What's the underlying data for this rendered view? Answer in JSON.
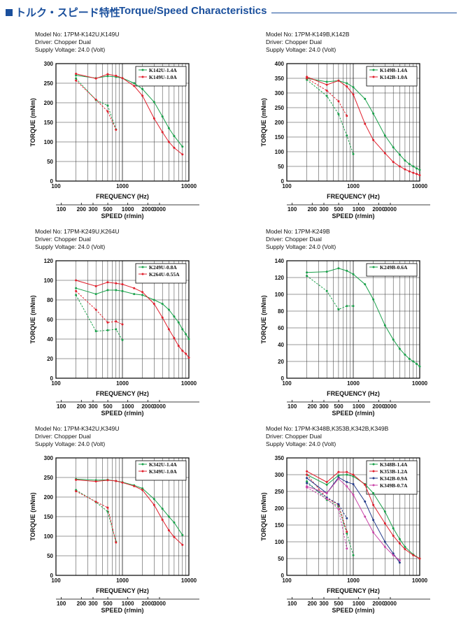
{
  "header": {
    "japanese_title": "トルク・スピード特性",
    "english_title": "Torque/Speed Characteristics",
    "accent_color": "#1a4f9c"
  },
  "axis_labels": {
    "torque": "TORQUE (mNm)",
    "frequency": "FREQUENCY (Hz)",
    "speed": "SPEED (r/min)"
  },
  "colors": {
    "green": "#19a04a",
    "red": "#e01f2c",
    "blue": "#243b8a",
    "magenta": "#c845a8"
  },
  "chart_data": [
    {
      "type": "line",
      "model": "Model No: 17PM-K142U,K149U",
      "driver": "Driver: Chopper Dual",
      "voltage": "Supply Voltage: 24.0 (Volt)",
      "xlabel": "FREQUENCY (Hz)",
      "x2label": "SPEED (r/min)",
      "ylabel": "TORQUE (mNm)",
      "xscale": "log",
      "xlim": [
        100,
        10000
      ],
      "ylim": [
        0,
        300
      ],
      "yticks": [
        "0",
        "50",
        "100",
        "150",
        "200",
        "250",
        "300"
      ],
      "xticks": [
        "100",
        "1000",
        "10000"
      ],
      "speed_ticks": [
        "100",
        "200",
        "300",
        "500",
        "1000",
        "2000",
        "3000"
      ],
      "legend_position": "top-right",
      "series": [
        {
          "name": "K142U-1.4A",
          "color": "green",
          "solid": {
            "x": [
              200,
              400,
              600,
              800,
              1000,
              1500,
              2000,
              3000,
              4000,
              5000,
              6000,
              8000
            ],
            "y": [
              270,
              263,
              268,
              266,
              263,
              250,
              235,
              202,
              165,
              135,
              115,
              88
            ]
          },
          "dashed": {
            "x": [
              200,
              400,
              600,
              800
            ],
            "y": [
              262,
              207,
              193,
              132
            ]
          }
        },
        {
          "name": "K149U-1.0A",
          "color": "red",
          "solid": {
            "x": [
              200,
              400,
              600,
              800,
              1000,
              1500,
              2000,
              3000,
              4000,
              5000,
              6000,
              8000
            ],
            "y": [
              274,
              262,
              273,
              269,
              263,
              243,
              218,
              160,
              125,
              100,
              85,
              68
            ]
          },
          "dashed": {
            "x": [
              200,
              400,
              600,
              800
            ],
            "y": [
              257,
              208,
              178,
              131
            ]
          }
        }
      ]
    },
    {
      "type": "line",
      "model": "Model No: 17PM-K149B,K142B",
      "driver": "Driver: Chopper Dual",
      "voltage": "Supply Voltage: 24.0 (Volt)",
      "xlabel": "FREQUENCY (Hz)",
      "x2label": "SPEED (r/min)",
      "ylabel": "TORQUE (mNm)",
      "xscale": "log",
      "xlim": [
        100,
        10000
      ],
      "ylim": [
        0,
        400
      ],
      "yticks": [
        "0",
        "50",
        "100",
        "150",
        "200",
        "250",
        "300",
        "350",
        "400"
      ],
      "xticks": [
        "100",
        "1000",
        "10000"
      ],
      "speed_ticks": [
        "100",
        "200",
        "300",
        "500",
        "1000",
        "2000",
        "3000"
      ],
      "legend_position": "top-right",
      "series": [
        {
          "name": "K149B-1.4A",
          "color": "green",
          "solid": {
            "x": [
              200,
              400,
              600,
              800,
              1000,
              1500,
              2000,
              3000,
              4000,
              5000,
              6000,
              7000,
              8000,
              9000,
              10000
            ],
            "y": [
              350,
              338,
              342,
              333,
              320,
              280,
              230,
              155,
              115,
              90,
              70,
              58,
              50,
              43,
              38
            ]
          },
          "dashed": {
            "x": [
              200,
              400,
              600,
              800,
              1000
            ],
            "y": [
              345,
              290,
              228,
              155,
              92
            ]
          }
        },
        {
          "name": "K142B-1.0A",
          "color": "red",
          "solid": {
            "x": [
              200,
              400,
              600,
              800,
              1000,
              1500,
              2000,
              3000,
              4000,
              5000,
              6000,
              7000,
              8000,
              9000,
              10000
            ],
            "y": [
              355,
              328,
              342,
              322,
              295,
              195,
              140,
              95,
              65,
              50,
              40,
              33,
              28,
              24,
              20
            ]
          },
          "dashed": {
            "x": [
              200,
              400,
              600,
              800
            ],
            "y": [
              350,
              308,
              272,
              222
            ]
          }
        }
      ]
    },
    {
      "type": "line",
      "model": "Model No: 17PM-K249U,K264U",
      "driver": "Driver: Chopper Dual",
      "voltage": "Supply Voltage: 24.0 (Volt)",
      "xlabel": "FREQUENCY (Hz)",
      "x2label": "SPEED (r/min)",
      "ylabel": "TORQUE (mNm)",
      "xscale": "log",
      "xlim": [
        100,
        10000
      ],
      "ylim": [
        0,
        120
      ],
      "yticks": [
        "0",
        "20",
        "40",
        "60",
        "80",
        "100",
        "120"
      ],
      "xticks": [
        "100",
        "1000",
        "10000"
      ],
      "speed_ticks": [
        "100",
        "200",
        "300",
        "500",
        "1000",
        "2000",
        "3000"
      ],
      "legend_position": "top-right",
      "series": [
        {
          "name": "K249U-0.8A",
          "color": "green",
          "solid": {
            "x": [
              200,
              400,
              600,
              800,
              1000,
              1500,
              2000,
              3000,
              4000,
              5000,
              6000,
              7000,
              8000,
              9000,
              10000
            ],
            "y": [
              92,
              86,
              90,
              90,
              89,
              86,
              85,
              80,
              76,
              70,
              63,
              57,
              50,
              45,
              40
            ]
          },
          "dashed": {
            "x": [
              200,
              400,
              600,
              800,
              1000
            ],
            "y": [
              85,
              48,
              49,
              50,
              39
            ]
          }
        },
        {
          "name": "K264U-0.55A",
          "color": "red",
          "solid": {
            "x": [
              200,
              400,
              600,
              800,
              1000,
              1500,
              2000,
              3000,
              4000,
              5000,
              6000,
              7000,
              8000,
              9000,
              10000
            ],
            "y": [
              100,
              94,
              98,
              97,
              96,
              92,
              88,
              76,
              62,
              50,
              41,
              33,
              28,
              25,
              21
            ]
          },
          "dashed": {
            "x": [
              200,
              400,
              600,
              800,
              1000
            ],
            "y": [
              89,
              70,
              57,
              58,
              55
            ]
          }
        }
      ]
    },
    {
      "type": "line",
      "model": "Model No: 17PM-K249B",
      "driver": "Driver: Chopper Dual",
      "voltage": "Supply Voltage: 24.0 (Volt)",
      "xlabel": "FREQUENCY (Hz)",
      "x2label": "SPEED (r/min)",
      "ylabel": "TORQUE (mNm)",
      "xscale": "log",
      "xlim": [
        100,
        10000
      ],
      "ylim": [
        0,
        140
      ],
      "yticks": [
        "0",
        "20",
        "40",
        "60",
        "80",
        "100",
        "120",
        "140"
      ],
      "xticks": [
        "100",
        "1000",
        "10000"
      ],
      "speed_ticks": [
        "100",
        "200",
        "300",
        "500",
        "1000",
        "2000",
        "3000"
      ],
      "legend_position": "top-right",
      "series": [
        {
          "name": "K249B-0.6A",
          "color": "green",
          "solid": {
            "x": [
              200,
              400,
              600,
              800,
              1000,
              1500,
              2000,
              3000,
              4000,
              5000,
              6000,
              7000,
              8000,
              9000,
              10000
            ],
            "y": [
              126,
              127,
              131,
              128,
              124,
              112,
              94,
              63,
              46,
              35,
              28,
              23,
              20,
              17,
              14
            ]
          },
          "dashed": {
            "x": [
              200,
              400,
              600,
              800,
              1000
            ],
            "y": [
              122,
              104,
              82,
              86,
              86
            ]
          }
        }
      ]
    },
    {
      "type": "line",
      "model": "Model No: 17PM-K342U,K349U",
      "driver": "Driver: Chopper Dual",
      "voltage": "Supply Voltage: 24.0 (Volt)",
      "xlabel": "FREQUENCY (Hz)",
      "x2label": "SPEED (r/min)",
      "ylabel": "TORQUE (mNm)",
      "xscale": "log",
      "xlim": [
        100,
        10000
      ],
      "ylim": [
        0,
        300
      ],
      "yticks": [
        "0",
        "50",
        "100",
        "150",
        "200",
        "250",
        "300"
      ],
      "xticks": [
        "100",
        "1000",
        "10000"
      ],
      "speed_ticks": [
        "100",
        "200",
        "300",
        "500",
        "1000",
        "2000",
        "3000"
      ],
      "legend_position": "top-right",
      "series": [
        {
          "name": "K342U-1.4A",
          "color": "green",
          "solid": {
            "x": [
              200,
              400,
              600,
              800,
              1000,
              1500,
              2000,
              3000,
              4000,
              5000,
              6000,
              8000
            ],
            "y": [
              246,
              243,
              244,
              241,
              238,
              230,
              222,
              195,
              170,
              150,
              135,
              103
            ]
          },
          "dashed": {
            "x": [
              200,
              400,
              600,
              800
            ],
            "y": [
              218,
              187,
              163,
              86
            ]
          }
        },
        {
          "name": "K349U-1.0A",
          "color": "red",
          "solid": {
            "x": [
              200,
              400,
              600,
              800,
              1000,
              1500,
              2000,
              3000,
              4000,
              5000,
              6000,
              8000
            ],
            "y": [
              244,
              240,
              243,
              241,
              237,
              228,
              218,
              180,
              142,
              115,
              98,
              78
            ]
          },
          "dashed": {
            "x": [
              200,
              400,
              600,
              800
            ],
            "y": [
              215,
              188,
              173,
              84
            ]
          }
        }
      ]
    },
    {
      "type": "line",
      "model": "Model No: 17PM-K348B,K353B,K342B,K349B",
      "driver": "Driver: Chopper Dual",
      "voltage": "Supply Voltage: 24.0 (Volt)",
      "xlabel": "FREQUENCY (Hz)",
      "x2label": "SPEED (r/min)",
      "ylabel": "TORQUE (mNm)",
      "xscale": "log",
      "xlim": [
        100,
        10000
      ],
      "ylim": [
        0,
        350
      ],
      "yticks": [
        "0",
        "50",
        "100",
        "150",
        "200",
        "250",
        "300",
        "350"
      ],
      "xticks": [
        "100",
        "1000",
        "10000"
      ],
      "speed_ticks": [
        "100",
        "200",
        "300",
        "500",
        "1000",
        "2000",
        "3000"
      ],
      "legend_position": "top-right",
      "series": [
        {
          "name": "K348B-1.4A",
          "color": "green",
          "solid": {
            "x": [
              200,
              400,
              600,
              800,
              1000,
              1500,
              2000,
              3000,
              4000,
              5000,
              6000,
              8000,
              10000
            ],
            "y": [
              300,
              270,
              298,
              300,
              295,
              272,
              245,
              190,
              140,
              108,
              85,
              62,
              50
            ]
          },
          "dashed": {
            "x": [
              200,
              400,
              600,
              800,
              1000
            ],
            "y": [
              280,
              225,
              205,
              125,
              60
            ]
          }
        },
        {
          "name": "K353B-1.2A",
          "color": "red",
          "solid": {
            "x": [
              200,
              400,
              600,
              800,
              1000,
              1500,
              2000,
              3000,
              4000,
              5000,
              6000,
              8000,
              10000
            ],
            "y": [
              310,
              278,
              308,
              308,
              300,
              270,
              210,
              155,
              118,
              95,
              78,
              60,
              50
            ]
          },
          "dashed": {
            "x": [
              200,
              400,
              600,
              800
            ],
            "y": [
              300,
              230,
              210,
              130
            ]
          }
        },
        {
          "name": "K342B-0.9A",
          "color": "blue",
          "solid": {
            "x": [
              200,
              400,
              600,
              800,
              1000,
              1500,
              2000,
              3000,
              4000,
              5000
            ],
            "y": [
              290,
              245,
              292,
              278,
              272,
              220,
              165,
              100,
              65,
              38
            ]
          },
          "dashed": {
            "x": [
              200,
              400,
              600,
              800
            ],
            "y": [
              275,
              232,
              212,
              170
            ]
          }
        },
        {
          "name": "K349B-0.7A",
          "color": "magenta",
          "solid": {
            "x": [
              200,
              400,
              600,
              800,
              1000,
              1500,
              2000,
              3000,
              4000,
              5000
            ],
            "y": [
              265,
              245,
              288,
              265,
              240,
              175,
              128,
              85,
              60,
              45
            ]
          },
          "dashed": {
            "x": [
              200,
              400,
              600,
              800
            ],
            "y": [
              262,
              228,
              198,
              80
            ]
          }
        }
      ]
    }
  ]
}
